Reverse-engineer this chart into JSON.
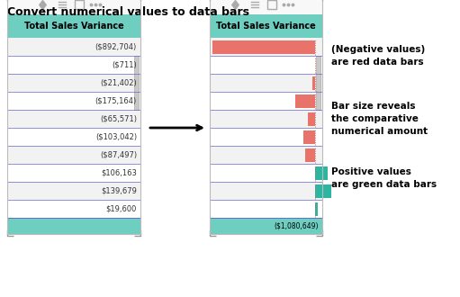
{
  "title": "Convert numerical values to data bars",
  "title_fontsize": 9,
  "rows": [
    "($892,704)",
    "($711)",
    "($21,402)",
    "($175,164)",
    "($65,571)",
    "($103,042)",
    "($87,497)",
    "$106,163",
    "$139,679",
    "$19,600",
    "($1,080,649)"
  ],
  "values": [
    -892704,
    -711,
    -21402,
    -175164,
    -65571,
    -103042,
    -87497,
    106163,
    139679,
    19600,
    -1080649
  ],
  "header": "Total Sales Variance",
  "header_bg": "#6ecfc1",
  "row_bg_odd": "#f2f2f2",
  "row_bg_even": "#ffffff",
  "grid_color": "#6666cc",
  "bar_negative_color": "#e8736a",
  "bar_positive_color": "#2cb5a0",
  "total_label": "($1,080,649)",
  "icon_color": "#aaaaaa",
  "border_color": "#aaaaaa",
  "scrollbar_color": "#c0c0c0",
  "ann1": "(Negative values)\nare red data bars",
  "ann2": "Bar size reveals\nthe comparative\nnumerical amount",
  "ann3": "Positive values\nare green data bars"
}
